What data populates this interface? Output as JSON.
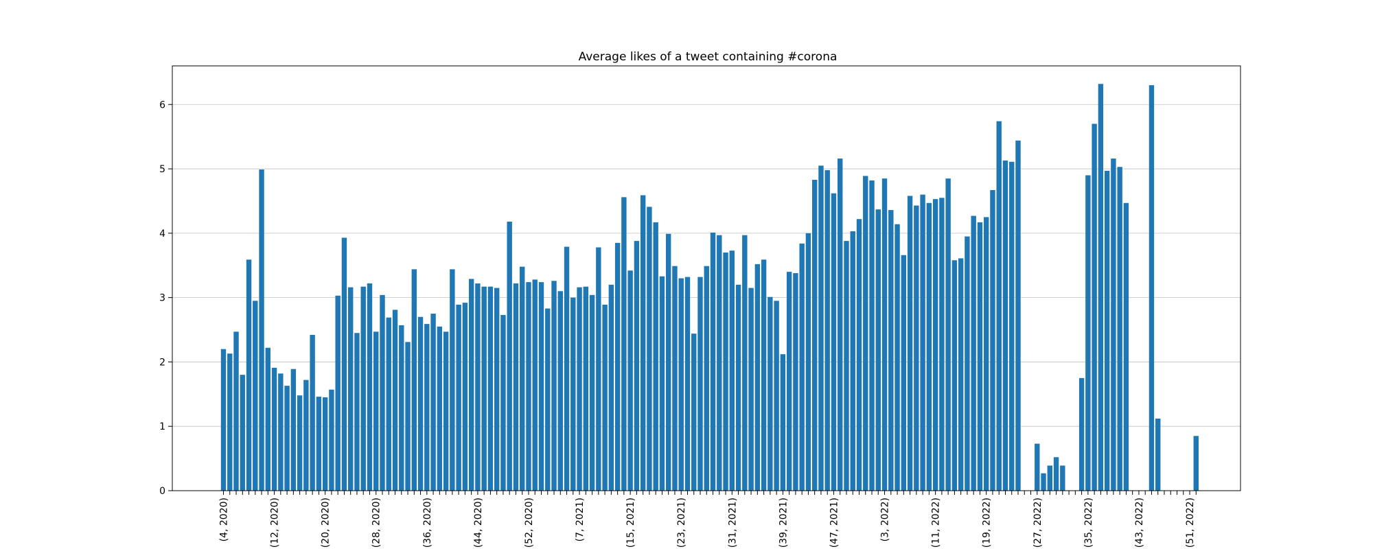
{
  "chart_data": {
    "type": "bar",
    "title": "Average likes of a tweet containing #corona",
    "xlabel": "",
    "ylabel": "",
    "ylim": [
      0,
      6.6
    ],
    "grid": "y",
    "bar_color": "#1f77b4",
    "yticks": [
      0,
      1,
      2,
      3,
      4,
      5,
      6
    ],
    "first_week": [
      4,
      2020
    ],
    "xtick_labels": [
      "(4, 2020)",
      "(12, 2020)",
      "(20, 2020)",
      "(28, 2020)",
      "(36, 2020)",
      "(44, 2020)",
      "(52, 2020)",
      "(7, 2021)",
      "(15, 2021)",
      "(23, 2021)",
      "(31, 2021)",
      "(39, 2021)",
      "(47, 2021)",
      "(3, 2022)",
      "(11, 2022)",
      "(19, 2022)",
      "(27, 2022)",
      "(35, 2022)",
      "(43, 2022)",
      "(51, 2022)"
    ],
    "values": [
      2.2,
      2.13,
      2.47,
      1.8,
      3.59,
      2.95,
      4.99,
      2.22,
      1.91,
      1.82,
      1.63,
      1.89,
      1.48,
      1.72,
      2.42,
      1.46,
      1.45,
      1.57,
      3.03,
      3.93,
      3.16,
      2.45,
      3.17,
      3.22,
      2.47,
      3.04,
      2.69,
      2.81,
      2.57,
      2.31,
      3.44,
      2.7,
      2.59,
      2.75,
      2.55,
      2.47,
      3.44,
      2.89,
      2.92,
      3.29,
      3.22,
      3.17,
      3.17,
      3.15,
      2.73,
      4.18,
      3.22,
      3.48,
      3.24,
      3.28,
      3.24,
      2.83,
      3.26,
      3.1,
      3.79,
      3.0,
      3.16,
      3.17,
      3.04,
      3.78,
      2.89,
      3.2,
      3.85,
      4.56,
      3.42,
      3.88,
      4.59,
      4.41,
      4.17,
      3.33,
      3.99,
      3.49,
      3.3,
      3.32,
      2.44,
      3.32,
      3.49,
      4.01,
      3.97,
      3.7,
      3.73,
      3.2,
      3.97,
      3.15,
      3.52,
      3.59,
      3.01,
      2.95,
      2.12,
      3.4,
      3.38,
      3.84,
      4.0,
      4.83,
      5.05,
      4.98,
      4.62,
      5.16,
      3.88,
      4.03,
      4.22,
      4.89,
      4.82,
      4.37,
      4.85,
      4.36,
      4.14,
      3.66,
      4.58,
      4.43,
      4.6,
      4.47,
      4.53,
      4.55,
      4.85,
      3.58,
      3.61,
      3.95,
      4.27,
      4.17,
      4.25,
      4.67,
      5.74,
      5.13,
      5.11,
      5.44,
      0,
      0,
      0.73,
      0.27,
      0.39,
      0.52,
      0.39,
      0,
      0,
      1.75,
      4.9,
      5.7,
      6.32,
      4.97,
      5.16,
      5.03,
      4.47,
      0,
      0,
      0,
      6.3,
      1.12,
      0,
      0,
      0,
      0,
      0,
      0.85
    ]
  }
}
